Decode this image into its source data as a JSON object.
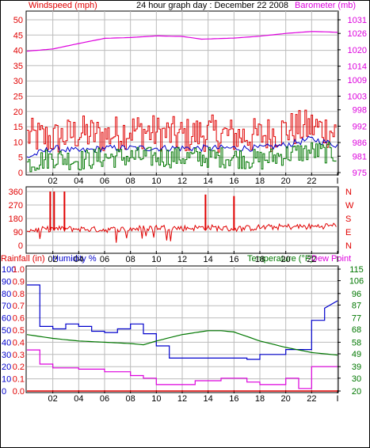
{
  "header": {
    "left_label": "Windspeed (mph)",
    "title": "24 hour graph day : December 22 2008",
    "right_label": "Barometer (mb)"
  },
  "colors": {
    "red": "#e00000",
    "blue": "#0000cc",
    "green": "#007700",
    "magenta": "#dd00dd",
    "grid": "#bbbbbb"
  },
  "direction_labels": [
    "N",
    "W",
    "S",
    "E",
    "N"
  ],
  "bottom_header": {
    "rainfall": "Rainfall (in)",
    "humidity": "Humidity %",
    "temperature": "Temperature (°F)",
    "dewpoint": "Dew Point"
  },
  "chart_data": [
    {
      "type": "line",
      "x_ticks": [
        "02",
        "04",
        "06",
        "08",
        "10",
        "12",
        "14",
        "16",
        "18",
        "20",
        "22",
        "I"
      ],
      "left_axis": {
        "ticks": [
          0,
          5,
          10,
          15,
          20,
          25,
          30,
          35,
          40,
          45,
          50
        ],
        "ylim": [
          0,
          50
        ]
      },
      "right_axis": {
        "ticks": [
          975,
          981,
          986,
          992,
          998,
          1003,
          1009,
          1014,
          1020,
          1026,
          1031
        ],
        "ylim": [
          975,
          1031
        ]
      },
      "series": [
        {
          "name": "Windspeed (mph)",
          "x": [
            0,
            2,
            4,
            6,
            8,
            10,
            12,
            14,
            16,
            18,
            20,
            22,
            24
          ],
          "values": [
            12,
            11,
            13,
            12,
            14,
            13,
            12,
            13,
            12,
            12,
            14,
            15,
            13
          ]
        },
        {
          "name": "Barometer (mb)",
          "x": [
            0,
            2,
            4,
            6,
            8,
            10,
            12,
            13.5,
            16,
            18,
            20,
            22,
            23,
            24
          ],
          "values": [
            1019.5,
            1020.3,
            1022.3,
            1024.2,
            1024.5,
            1025.1,
            1024.9,
            1023.9,
            1024.3,
            1025.0,
            1026.0,
            1026.7,
            1026.6,
            1026.4
          ]
        }
      ],
      "secondary_series": [
        {
          "x": [
            0,
            2,
            4,
            6,
            8,
            10,
            12,
            14,
            16,
            18,
            20,
            22,
            24
          ],
          "values": [
            5,
            8,
            7,
            8,
            8,
            8,
            8,
            8,
            8,
            8,
            9,
            11,
            9
          ]
        },
        {
          "x": [
            0,
            2,
            4,
            6,
            8,
            10,
            12,
            14,
            16,
            18,
            20,
            22,
            24
          ],
          "values": [
            3,
            5,
            4,
            5,
            5,
            5,
            5,
            5,
            5,
            4,
            6,
            7,
            6
          ]
        }
      ]
    },
    {
      "type": "line",
      "x_ticks": [
        "02",
        "04",
        "06",
        "08",
        "10",
        "12",
        "14",
        "16",
        "18",
        "20",
        "22",
        "I"
      ],
      "left_axis": {
        "ticks": [
          0,
          90,
          180,
          270,
          360
        ],
        "ylim": [
          0,
          360
        ]
      },
      "right_axis": {
        "ticks": [
          "N",
          "W",
          "S",
          "E",
          "N"
        ]
      },
      "series": [
        {
          "x": [
            0,
            2,
            4,
            6,
            8,
            10,
            12,
            14,
            16,
            18,
            20,
            22,
            24
          ],
          "values": [
            100,
            110,
            110,
            105,
            110,
            120,
            115,
            120,
            110,
            120,
            125,
            125,
            135
          ]
        }
      ],
      "spikes": [
        {
          "x": 1.8,
          "value": 360
        },
        {
          "x": 2.1,
          "value": 360
        },
        {
          "x": 2.9,
          "value": 360
        },
        {
          "x": 13.8,
          "value": 340
        },
        {
          "x": 16.0,
          "value": 330
        }
      ]
    },
    {
      "type": "line",
      "x_ticks": [
        "02",
        "04",
        "06",
        "08",
        "10",
        "12",
        "14",
        "16",
        "18",
        "20",
        "22",
        "I"
      ],
      "rain_axis": {
        "ticks": [
          0.0,
          0.1,
          0.2,
          0.3,
          0.4,
          0.5,
          0.6,
          0.7,
          0.8,
          0.9,
          1.0
        ],
        "ylim": [
          0,
          1.0
        ]
      },
      "humidity_axis": {
        "ticks": [
          0,
          10,
          20,
          30,
          40,
          50,
          60,
          70,
          80,
          90,
          100
        ],
        "ylim": [
          0,
          100
        ]
      },
      "temperature_axis": {
        "ticks": [
          20,
          30,
          39,
          49,
          58,
          68,
          77,
          87,
          96,
          106,
          115
        ],
        "ylim": [
          20,
          115
        ]
      },
      "series": [
        {
          "name": "Rainfall (in)",
          "x": [
            0,
            24
          ],
          "values": [
            0,
            0
          ]
        },
        {
          "name": "Humidity %",
          "x": [
            0,
            1,
            1,
            2,
            2,
            3,
            3,
            4,
            4,
            5,
            5,
            6,
            6,
            7,
            7,
            8,
            8,
            9,
            9,
            10,
            10,
            11,
            11,
            13,
            13,
            15,
            15,
            17,
            17,
            18,
            18,
            20,
            20,
            21,
            21,
            22,
            22,
            23,
            23,
            24
          ],
          "values": [
            87,
            87,
            53,
            53,
            51,
            51,
            55,
            55,
            53,
            53,
            49,
            49,
            48,
            48,
            51,
            51,
            55,
            55,
            47,
            47,
            37,
            37,
            27,
            27,
            27,
            27,
            27,
            27,
            26,
            26,
            30,
            30,
            34,
            34,
            34,
            34,
            58,
            58,
            68,
            74
          ]
        },
        {
          "name": "Temperature (°F)",
          "x": [
            0,
            2,
            4,
            6,
            8,
            9,
            10,
            12,
            14,
            15,
            16,
            18,
            20,
            22,
            24
          ],
          "values": [
            64,
            61,
            59,
            58,
            57,
            56,
            59,
            64,
            67,
            67,
            66,
            59,
            54,
            50,
            48
          ]
        },
        {
          "name": "Dew Point",
          "x": [
            0,
            1,
            1,
            2,
            2,
            4,
            4,
            6,
            6,
            8,
            8,
            9,
            9,
            10,
            10,
            13,
            13,
            15,
            15,
            17,
            17,
            18,
            18,
            20,
            20,
            21,
            21,
            22,
            22,
            24
          ],
          "values": [
            52,
            52,
            41,
            41,
            38,
            38,
            37,
            37,
            35,
            35,
            32,
            32,
            30,
            30,
            25,
            25,
            28,
            28,
            30,
            30,
            27,
            27,
            25,
            25,
            30,
            30,
            22,
            22,
            39,
            39
          ]
        }
      ]
    }
  ]
}
